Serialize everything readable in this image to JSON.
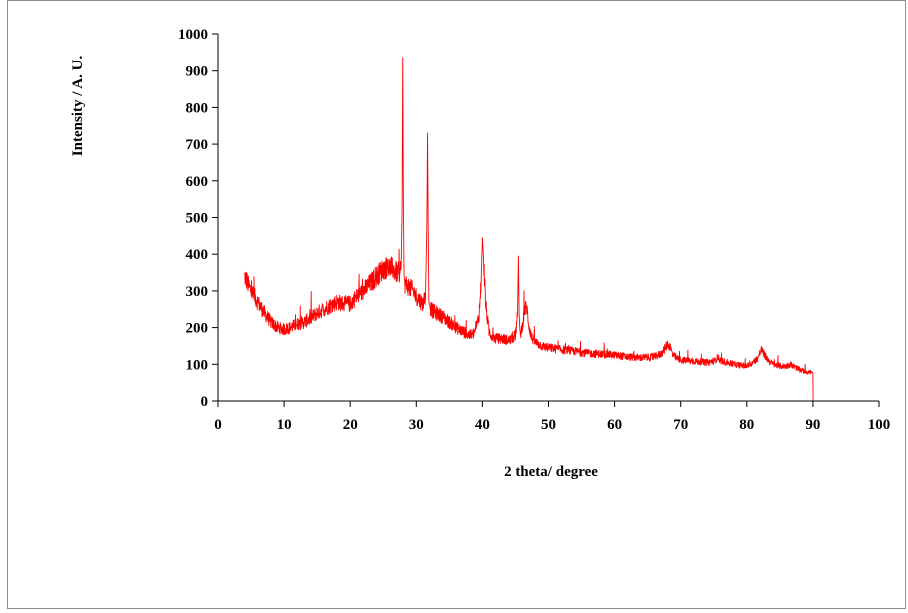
{
  "chart_data": {
    "type": "line",
    "title": "",
    "xlabel": "2 theta/  degree",
    "ylabel": "Intensity / A. U.",
    "xlim": [
      0,
      100
    ],
    "ylim": [
      0,
      1000
    ],
    "x_ticks": [
      0,
      10,
      20,
      30,
      40,
      50,
      60,
      70,
      80,
      90,
      100
    ],
    "y_ticks": [
      0,
      100,
      200,
      300,
      400,
      500,
      600,
      700,
      800,
      900,
      1000
    ],
    "x_tick_labels": [
      "0",
      "10",
      "20",
      "30",
      "40",
      "50",
      "60",
      "70",
      "80",
      "90",
      "100"
    ],
    "y_tick_labels": [
      "0",
      "100",
      "200",
      "300",
      "400",
      "500",
      "600",
      "700",
      "800",
      "900",
      "1000"
    ],
    "grid": false,
    "legend": "none",
    "series": [
      {
        "color": "#ff0000",
        "x": [
          4.0,
          4.3,
          4.6,
          5,
          6,
          7,
          8,
          9,
          10,
          11,
          12,
          13,
          14,
          15,
          16,
          17,
          18,
          19,
          20,
          21,
          22,
          23,
          24,
          25,
          25.6,
          26,
          26.5,
          27,
          27.4,
          27.7,
          27.85,
          27.95,
          28.05,
          28.15,
          28.3,
          28.6,
          29,
          29.5,
          30,
          30.5,
          31,
          31.4,
          31.6,
          31.7,
          31.8,
          31.9,
          32.1,
          32.5,
          33,
          34,
          35,
          36,
          37,
          38,
          38.5,
          39,
          39.5,
          39.8,
          40.0,
          40.2,
          40.5,
          41,
          41.5,
          42,
          43,
          44,
          44.5,
          45,
          45.3,
          45.45,
          45.55,
          45.7,
          46,
          46.4,
          46.7,
          47,
          47.4,
          48,
          49,
          50,
          52,
          54,
          56,
          58,
          60,
          62,
          64,
          66,
          67,
          67.5,
          68,
          68.4,
          68.8,
          69.5,
          70,
          72,
          74,
          75.2,
          75.6,
          76,
          78,
          80,
          81,
          81.7,
          82.2,
          82.7,
          83.3,
          84,
          85,
          86,
          86.6,
          87,
          88,
          89,
          89.8,
          90.0,
          90.02
        ],
        "y": [
          340,
          330,
          315,
          300,
          270,
          240,
          215,
          200,
          195,
          200,
          210,
          215,
          225,
          240,
          250,
          260,
          270,
          265,
          265,
          285,
          300,
          320,
          340,
          360,
          365,
          365,
          360,
          350,
          350,
          360,
          520,
          935,
          520,
          340,
          320,
          315,
          310,
          300,
          285,
          275,
          265,
          290,
          480,
          730,
          470,
          270,
          255,
          245,
          240,
          230,
          215,
          200,
          190,
          180,
          180,
          195,
          235,
          320,
          445,
          380,
          260,
          190,
          175,
          170,
          170,
          165,
          170,
          180,
          230,
          395,
          240,
          180,
          200,
          250,
          255,
          210,
          175,
          160,
          150,
          145,
          140,
          135,
          130,
          128,
          125,
          120,
          118,
          120,
          128,
          140,
          155,
          148,
          125,
          115,
          112,
          108,
          105,
          110,
          120,
          110,
          100,
          95,
          105,
          118,
          140,
          125,
          110,
          100,
          95,
          95,
          100,
          95,
          85,
          80,
          78,
          78,
          0
        ]
      }
    ]
  }
}
